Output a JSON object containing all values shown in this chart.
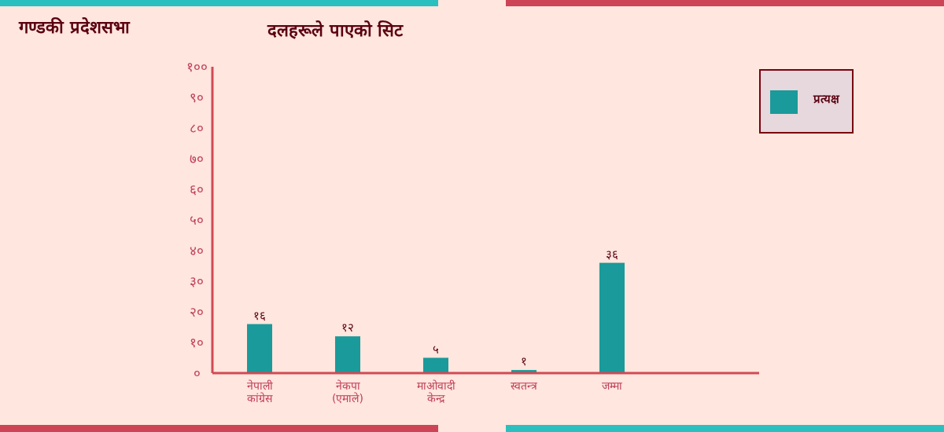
{
  "chart_data": {
    "type": "bar",
    "title": "दलहरूले पाएको सिट",
    "subtitle": "गण्डकी प्रदेशसभा",
    "categories": [
      "नेपाली कांग्रेस",
      "नेकपा (एमाले)",
      "माओवादी केन्द्र",
      "स्वतन्त्र",
      "जम्मा"
    ],
    "series": [
      {
        "name": "प्रत्यक्ष",
        "color": "#1a9a9a",
        "values": [
          16,
          12,
          5,
          1,
          36
        ],
        "value_labels": [
          "१६",
          "१२",
          "५",
          "१",
          "३६"
        ]
      }
    ],
    "ylim": [
      0,
      100
    ],
    "yticks": [
      {
        "value": 0,
        "label": "०"
      },
      {
        "value": 10,
        "label": "१०"
      },
      {
        "value": 20,
        "label": "२०"
      },
      {
        "value": 30,
        "label": "३०"
      },
      {
        "value": 40,
        "label": "४०"
      },
      {
        "value": 50,
        "label": "५०"
      },
      {
        "value": 60,
        "label": "६०"
      },
      {
        "value": 70,
        "label": "७०"
      },
      {
        "value": 80,
        "label": "८०"
      },
      {
        "value": 90,
        "label": "९०"
      },
      {
        "value": 100,
        "label": "१००"
      }
    ],
    "legend": "top right",
    "grid": false
  }
}
